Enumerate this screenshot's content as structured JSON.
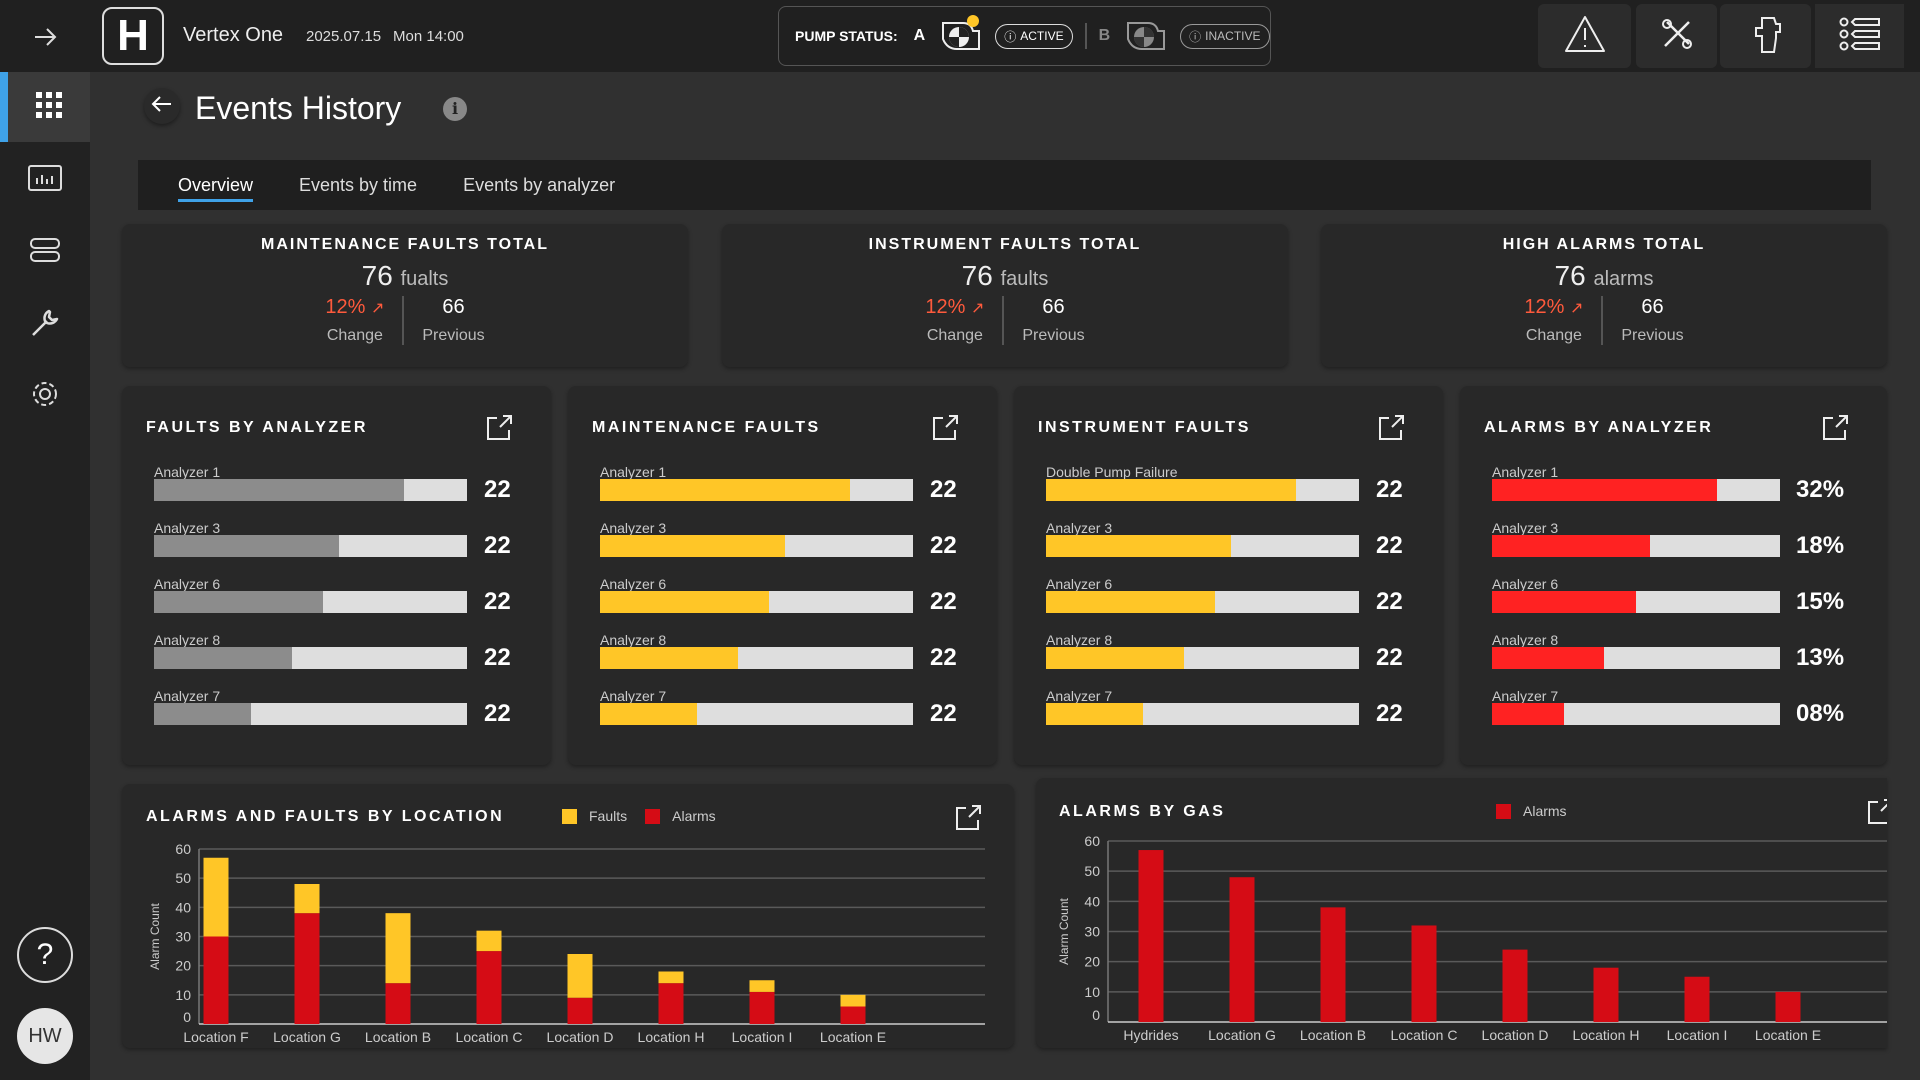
{
  "header": {
    "app_name": "Vertex One",
    "date": "2025.07.15",
    "day_time": "Mon 14:00",
    "logo_letter": "H",
    "pump_status_label": "PUMP STATUS:",
    "pump_a": "A",
    "pump_a_state": "ACTIVE",
    "pump_b": "B",
    "pump_b_state": "INACTIVE"
  },
  "sidebar": {
    "avatar": "HW",
    "help": "?"
  },
  "page": {
    "title": "Events History"
  },
  "tabs": [
    "Overview",
    "Events by time",
    "Events by analyzer"
  ],
  "kpis": [
    {
      "title": "MAINTENANCE FAULTS TOTAL",
      "value": "76",
      "unit": "fualts",
      "change": "12%",
      "change_label": "Change",
      "previous": "66",
      "previous_label": "Previous"
    },
    {
      "title": "INSTRUMENT FAULTS TOTAL",
      "value": "76",
      "unit": "faults",
      "change": "12%",
      "change_label": "Change",
      "previous": "66",
      "previous_label": "Previous"
    },
    {
      "title": "HIGH ALARMS TOTAL",
      "value": "76",
      "unit": "alarms",
      "change": "12%",
      "change_label": "Change",
      "previous": "66",
      "previous_label": "Previous"
    }
  ],
  "colors": {
    "faults": "#ffc627",
    "alarms": "#d50c15",
    "alarm_bar": "#ff2222",
    "gray_bar": "#8c8c8c",
    "accent": "#3fa2e8"
  },
  "bar_cards": [
    {
      "title": "FAULTS BY ANALYZER",
      "color": "#8c8c8c",
      "rows": [
        {
          "label": "Analyzer 1",
          "value": "22",
          "fill": 0.8
        },
        {
          "label": "Analyzer 3",
          "value": "22",
          "fill": 0.59
        },
        {
          "label": "Analyzer 6",
          "value": "22",
          "fill": 0.54
        },
        {
          "label": "Analyzer 8",
          "value": "22",
          "fill": 0.44
        },
        {
          "label": "Analyzer 7",
          "value": "22",
          "fill": 0.31
        }
      ]
    },
    {
      "title": "MAINTENANCE FAULTS",
      "color": "#ffc627",
      "rows": [
        {
          "label": "Analyzer 1",
          "value": "22",
          "fill": 0.8
        },
        {
          "label": "Analyzer 3",
          "value": "22",
          "fill": 0.59
        },
        {
          "label": "Analyzer 6",
          "value": "22",
          "fill": 0.54
        },
        {
          "label": "Analyzer 8",
          "value": "22",
          "fill": 0.44
        },
        {
          "label": "Analyzer 7",
          "value": "22",
          "fill": 0.31
        }
      ]
    },
    {
      "title": "INSTRUMENT FAULTS",
      "color": "#ffc627",
      "rows": [
        {
          "label": "Double Pump Failure",
          "value": "22",
          "fill": 0.8
        },
        {
          "label": "Analyzer 3",
          "value": "22",
          "fill": 0.59
        },
        {
          "label": "Analyzer 6",
          "value": "22",
          "fill": 0.54
        },
        {
          "label": "Analyzer 8",
          "value": "22",
          "fill": 0.44
        },
        {
          "label": "Analyzer 7",
          "value": "22",
          "fill": 0.31
        }
      ]
    },
    {
      "title": "ALARMS BY ANALYZER",
      "color": "#ff2222",
      "rows": [
        {
          "label": "Analyzer 1",
          "value": "32%",
          "fill": 0.78
        },
        {
          "label": "Analyzer 3",
          "value": "18%",
          "fill": 0.55
        },
        {
          "label": "Analyzer 6",
          "value": "15%",
          "fill": 0.5
        },
        {
          "label": "Analyzer 8",
          "value": "13%",
          "fill": 0.39
        },
        {
          "label": "Analyzer 7",
          "value": "08%",
          "fill": 0.25
        }
      ]
    }
  ],
  "chart_data": [
    {
      "type": "bar",
      "stacked": true,
      "title": "ALARMS AND FAULTS BY LOCATION",
      "ylabel": "Alarm Count",
      "ylim": [
        0,
        60
      ],
      "yticks": [
        0,
        10,
        20,
        30,
        40,
        50,
        60
      ],
      "categories": [
        "Location F",
        "Location G",
        "Location B",
        "Location C",
        "Location D",
        "Location H",
        "Location I",
        "Location E"
      ],
      "series": [
        {
          "name": "Alarms",
          "values": [
            30,
            38,
            14,
            25,
            9,
            14,
            11,
            6
          ]
        },
        {
          "name": "Faults",
          "values": [
            27,
            10,
            24,
            7,
            15,
            4,
            4,
            4
          ]
        }
      ],
      "legend": "top"
    },
    {
      "type": "bar",
      "title": "ALARMS BY GAS",
      "ylabel": "Alarm Count",
      "ylim": [
        0,
        60
      ],
      "yticks": [
        0,
        10,
        20,
        30,
        40,
        50,
        60
      ],
      "categories": [
        "Hydrides",
        "Location G",
        "Location B",
        "Location C",
        "Location D",
        "Location H",
        "Location I",
        "Location E"
      ],
      "series": [
        {
          "name": "Alarms",
          "values": [
            57,
            48,
            38,
            32,
            24,
            18,
            15,
            10
          ]
        }
      ],
      "legend": "top"
    }
  ]
}
